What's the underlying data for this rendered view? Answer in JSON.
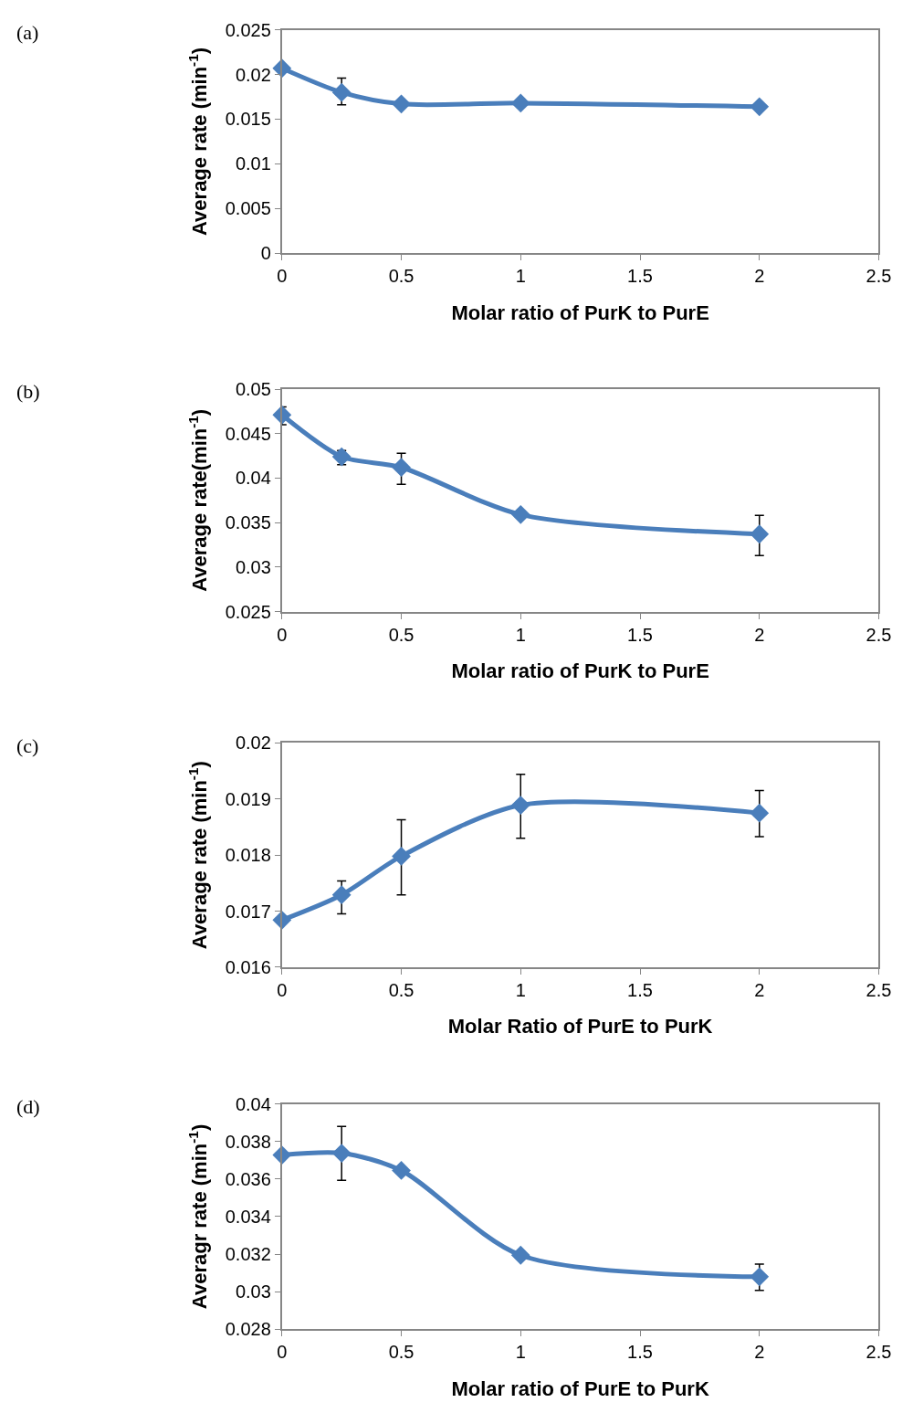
{
  "chart_data": [
    {
      "type": "line",
      "annotations": [
        "(a)"
      ],
      "xlabel": "Molar ratio of PurK to PurE",
      "ylabel": "Average rate (min$^{-1}$)",
      "x": [
        0,
        0.25,
        0.5,
        1,
        2
      ],
      "marker": "diamond",
      "line_style": "solid",
      "series": [
        {
          "color": "#4a7ebb",
          "values": [
            0.0207,
            0.018,
            0.0167,
            0.0168,
            0.0164
          ],
          "errors": [
            null,
            [
              0.0166,
              0.0196
            ],
            null,
            null,
            null
          ]
        }
      ],
      "xlim": [
        0,
        2.5
      ],
      "xticks": [
        0,
        0.5,
        1,
        1.5,
        2,
        2.5
      ],
      "ylim": [
        0,
        0.025
      ],
      "yticks": [
        0,
        0.005,
        0.01,
        0.015,
        0.02,
        0.025
      ]
    },
    {
      "type": "line",
      "annotations": [
        "(b)"
      ],
      "xlabel": "Molar ratio of PurK to PurE",
      "ylabel": "Average rate(min$^{-1}$)",
      "x": [
        0,
        0.25,
        0.5,
        1,
        2
      ],
      "marker": "diamond",
      "line_style": "solid",
      "series": [
        {
          "color": "#4a7ebb",
          "values": [
            0.0471,
            0.0424,
            0.0412,
            0.0359,
            0.0337
          ],
          "errors": [
            [
              0.046,
              0.048
            ],
            [
              0.0415,
              0.0431
            ],
            [
              0.0393,
              0.0428
            ],
            null,
            [
              0.0313,
              0.0358
            ]
          ]
        }
      ],
      "xlim": [
        0,
        2.5
      ],
      "xticks": [
        0,
        0.5,
        1,
        1.5,
        2,
        2.5
      ],
      "ylim": [
        0.025,
        0.05
      ],
      "yticks": [
        0.025,
        0.03,
        0.035,
        0.04,
        0.045,
        0.05
      ]
    },
    {
      "type": "line",
      "annotations": [
        "(c)"
      ],
      "xlabel": "Molar Ratio of PurE to PurK",
      "ylabel": "Average rate (min$^{-1}$)",
      "x": [
        0,
        0.25,
        0.5,
        1,
        2
      ],
      "marker": "diamond",
      "line_style": "solid",
      "series": [
        {
          "color": "#4a7ebb",
          "values": [
            0.01684,
            0.01729,
            0.01798,
            0.01889,
            0.01875
          ],
          "errors": [
            null,
            [
              0.01695,
              0.01754
            ],
            [
              0.01729,
              0.01863
            ],
            [
              0.0183,
              0.01944
            ],
            [
              0.01833,
              0.01915
            ]
          ]
        }
      ],
      "xlim": [
        0,
        2.5
      ],
      "xticks": [
        0,
        0.5,
        1,
        1.5,
        2,
        2.5
      ],
      "ylim": [
        0.016,
        0.02
      ],
      "yticks": [
        0.016,
        0.017,
        0.018,
        0.019,
        0.02
      ]
    },
    {
      "type": "line",
      "annotations": [
        "(d)"
      ],
      "xlabel": "Molar ratio of PurE to PurK",
      "ylabel": "Averagr rate (min$^{-1}$)",
      "x": [
        0,
        0.25,
        0.5,
        1,
        2
      ],
      "marker": "diamond",
      "line_style": "solid",
      "series": [
        {
          "color": "#4a7ebb",
          "values": [
            0.03728,
            0.03738,
            0.03646,
            0.03194,
            0.03079
          ],
          "errors": [
            null,
            [
              0.03593,
              0.0388
            ],
            null,
            null,
            [
              0.03007,
              0.03146
            ]
          ]
        }
      ],
      "xlim": [
        0,
        2.5
      ],
      "xticks": [
        0,
        0.5,
        1,
        1.5,
        2,
        2.5
      ],
      "ylim": [
        0.028,
        0.04
      ],
      "yticks": [
        0.028,
        0.03,
        0.032,
        0.034,
        0.036,
        0.038,
        0.04
      ]
    }
  ]
}
